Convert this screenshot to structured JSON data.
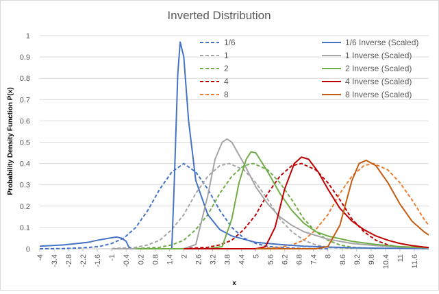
{
  "chart_data": {
    "type": "line",
    "title": "Inverted Distribution",
    "xlabel": "x",
    "ylabel": "Probability Density Function  P(x)",
    "xlim": [
      -4,
      12.2
    ],
    "ylim": [
      0,
      1
    ],
    "x_tick_labels": [
      "-4",
      "-3.4",
      "-2.8",
      "-2.2",
      "-1.6",
      "-1",
      "-0.4",
      "0.2",
      "0.8",
      "1.4",
      "2",
      "2.6",
      "3.2",
      "3.8",
      "4.4",
      "5",
      "5.6",
      "6.2",
      "6.8",
      "7.4",
      "8",
      "8.6",
      "9.2",
      "9.8",
      "10.4",
      "11",
      "11.6"
    ],
    "y_tick_labels": [
      "0",
      "0.1",
      "0.2",
      "0.3",
      "0.4",
      "0.5",
      "0.6",
      "0.7",
      "0.8",
      "0.9",
      "1"
    ],
    "grid": "horizontal",
    "legend_position": "top",
    "series": [
      {
        "name": "1/6",
        "style": "dashed",
        "color": "#4472C4",
        "points": [
          [
            -4,
            0
          ],
          [
            -3,
            0.001
          ],
          [
            -2,
            0.006
          ],
          [
            -1.5,
            0.011
          ],
          [
            -1,
            0.025
          ],
          [
            -0.5,
            0.05
          ],
          [
            0,
            0.1
          ],
          [
            0.5,
            0.18
          ],
          [
            1,
            0.28
          ],
          [
            1.5,
            0.36
          ],
          [
            2,
            0.4
          ],
          [
            2.5,
            0.36
          ],
          [
            3,
            0.28
          ],
          [
            3.5,
            0.18
          ],
          [
            4,
            0.1
          ],
          [
            4.5,
            0.05
          ],
          [
            5,
            0.025
          ],
          [
            5.5,
            0.011
          ],
          [
            6,
            0.006
          ],
          [
            7,
            0.001
          ],
          [
            8,
            0
          ]
        ]
      },
      {
        "name": "1",
        "style": "dashed",
        "color": "#A5A5A5",
        "points": [
          [
            -1,
            0.001
          ],
          [
            0,
            0.007
          ],
          [
            0.5,
            0.018
          ],
          [
            1,
            0.04
          ],
          [
            1.5,
            0.09
          ],
          [
            2,
            0.16
          ],
          [
            2.5,
            0.26
          ],
          [
            3,
            0.34
          ],
          [
            3.5,
            0.39
          ],
          [
            3.9,
            0.4
          ],
          [
            4.5,
            0.37
          ],
          [
            5,
            0.31
          ],
          [
            5.5,
            0.23
          ],
          [
            6,
            0.14
          ],
          [
            6.5,
            0.08
          ],
          [
            7,
            0.04
          ],
          [
            7.5,
            0.018
          ],
          [
            8,
            0.007
          ],
          [
            9,
            0.001
          ]
        ]
      },
      {
        "name": "2",
        "style": "dashed",
        "color": "#70AD47",
        "points": [
          [
            0,
            0.001
          ],
          [
            1,
            0.007
          ],
          [
            1.5,
            0.018
          ],
          [
            2,
            0.04
          ],
          [
            2.5,
            0.09
          ],
          [
            3,
            0.16
          ],
          [
            3.5,
            0.26
          ],
          [
            4,
            0.34
          ],
          [
            4.5,
            0.39
          ],
          [
            4.9,
            0.4
          ],
          [
            5.5,
            0.37
          ],
          [
            6,
            0.31
          ],
          [
            6.5,
            0.23
          ],
          [
            7,
            0.14
          ],
          [
            7.5,
            0.08
          ],
          [
            8,
            0.04
          ],
          [
            8.5,
            0.018
          ],
          [
            9,
            0.007
          ],
          [
            10,
            0.001
          ]
        ]
      },
      {
        "name": "4",
        "style": "dashed",
        "color": "#C00000",
        "points": [
          [
            2,
            0.001
          ],
          [
            3,
            0.007
          ],
          [
            3.5,
            0.018
          ],
          [
            4,
            0.04
          ],
          [
            4.5,
            0.09
          ],
          [
            5,
            0.16
          ],
          [
            5.5,
            0.26
          ],
          [
            6,
            0.34
          ],
          [
            6.5,
            0.39
          ],
          [
            6.9,
            0.4
          ],
          [
            7.5,
            0.37
          ],
          [
            8,
            0.31
          ],
          [
            8.5,
            0.23
          ],
          [
            9,
            0.14
          ],
          [
            9.5,
            0.08
          ],
          [
            10,
            0.04
          ],
          [
            10.5,
            0.018
          ],
          [
            11,
            0.007
          ],
          [
            12,
            0.001
          ]
        ]
      },
      {
        "name": "8",
        "style": "dashed",
        "color": "#ED7D31",
        "points": [
          [
            5,
            0.001
          ],
          [
            6,
            0.007
          ],
          [
            6.5,
            0.018
          ],
          [
            7,
            0.04
          ],
          [
            7.5,
            0.09
          ],
          [
            8,
            0.16
          ],
          [
            8.5,
            0.26
          ],
          [
            9,
            0.34
          ],
          [
            9.5,
            0.39
          ],
          [
            9.9,
            0.4
          ],
          [
            10.5,
            0.37
          ],
          [
            11,
            0.31
          ],
          [
            11.5,
            0.23
          ],
          [
            12,
            0.14
          ],
          [
            12.2,
            0.11
          ]
        ]
      },
      {
        "name": "1/6 Inverse (Scaled)",
        "style": "solid",
        "color": "#4472C4",
        "points": [
          [
            -4,
            0.012
          ],
          [
            -3,
            0.018
          ],
          [
            -2,
            0.03
          ],
          [
            -1.6,
            0.04
          ],
          [
            -1,
            0.052
          ],
          [
            -0.8,
            0.055
          ],
          [
            -0.6,
            0.05
          ],
          [
            -0.4,
            0.035
          ],
          [
            -0.3,
            0.01
          ],
          [
            -0.2,
            0.0
          ],
          [
            0.5,
            0.0
          ],
          [
            1.5,
            0.0
          ],
          [
            1.6,
            0.3
          ],
          [
            1.75,
            0.82
          ],
          [
            1.85,
            0.97
          ],
          [
            2,
            0.9
          ],
          [
            2.2,
            0.6
          ],
          [
            2.5,
            0.32
          ],
          [
            3,
            0.16
          ],
          [
            3.5,
            0.09
          ],
          [
            4,
            0.06
          ],
          [
            5,
            0.03
          ],
          [
            6,
            0.02
          ],
          [
            7,
            0.012
          ],
          [
            8,
            0.008
          ],
          [
            9,
            0.005
          ],
          [
            10,
            0.003
          ],
          [
            11,
            0.002
          ],
          [
            12.2,
            0.001
          ]
        ]
      },
      {
        "name": "1 Inverse (Scaled)",
        "style": "solid",
        "color": "#A5A5A5",
        "points": [
          [
            -1,
            0.0
          ],
          [
            1,
            0.0
          ],
          [
            2,
            0.0
          ],
          [
            2.5,
            0.02
          ],
          [
            3,
            0.25
          ],
          [
            3.3,
            0.42
          ],
          [
            3.6,
            0.5
          ],
          [
            3.8,
            0.515
          ],
          [
            4,
            0.5
          ],
          [
            4.5,
            0.4
          ],
          [
            5,
            0.29
          ],
          [
            5.5,
            0.21
          ],
          [
            6,
            0.15
          ],
          [
            6.5,
            0.11
          ],
          [
            7,
            0.08
          ],
          [
            8,
            0.045
          ],
          [
            9,
            0.025
          ],
          [
            10,
            0.015
          ],
          [
            11,
            0.008
          ],
          [
            12.2,
            0.004
          ]
        ]
      },
      {
        "name": "2 Inverse (Scaled)",
        "style": "solid",
        "color": "#70AD47",
        "points": [
          [
            0,
            0.0
          ],
          [
            3,
            0.0
          ],
          [
            3.6,
            0.01
          ],
          [
            4,
            0.14
          ],
          [
            4.3,
            0.31
          ],
          [
            4.6,
            0.42
          ],
          [
            4.8,
            0.455
          ],
          [
            5,
            0.45
          ],
          [
            5.5,
            0.36
          ],
          [
            6,
            0.26
          ],
          [
            6.5,
            0.18
          ],
          [
            7,
            0.12
          ],
          [
            7.5,
            0.08
          ],
          [
            8,
            0.06
          ],
          [
            9,
            0.035
          ],
          [
            10,
            0.02
          ],
          [
            11,
            0.01
          ],
          [
            12.2,
            0.005
          ]
        ]
      },
      {
        "name": "4 Inverse (Scaled)",
        "style": "solid",
        "color": "#C00000",
        "points": [
          [
            2,
            0.0
          ],
          [
            5,
            0.0
          ],
          [
            5.4,
            0.01
          ],
          [
            5.8,
            0.1
          ],
          [
            6.2,
            0.28
          ],
          [
            6.6,
            0.4
          ],
          [
            6.9,
            0.43
          ],
          [
            7.2,
            0.42
          ],
          [
            7.6,
            0.36
          ],
          [
            8,
            0.28
          ],
          [
            8.5,
            0.19
          ],
          [
            9,
            0.13
          ],
          [
            9.5,
            0.09
          ],
          [
            10,
            0.06
          ],
          [
            10.5,
            0.04
          ],
          [
            11,
            0.025
          ],
          [
            11.5,
            0.015
          ],
          [
            12,
            0.008
          ],
          [
            12.2,
            0.006
          ]
        ]
      },
      {
        "name": "8 Inverse (Scaled)",
        "style": "solid",
        "color": "#C55A11",
        "points": [
          [
            5,
            0.0
          ],
          [
            7.5,
            0.0
          ],
          [
            8,
            0.01
          ],
          [
            8.5,
            0.11
          ],
          [
            9,
            0.32
          ],
          [
            9.3,
            0.4
          ],
          [
            9.6,
            0.415
          ],
          [
            10,
            0.39
          ],
          [
            10.5,
            0.31
          ],
          [
            11,
            0.21
          ],
          [
            11.5,
            0.13
          ],
          [
            12,
            0.08
          ],
          [
            12.2,
            0.065
          ]
        ]
      }
    ]
  }
}
